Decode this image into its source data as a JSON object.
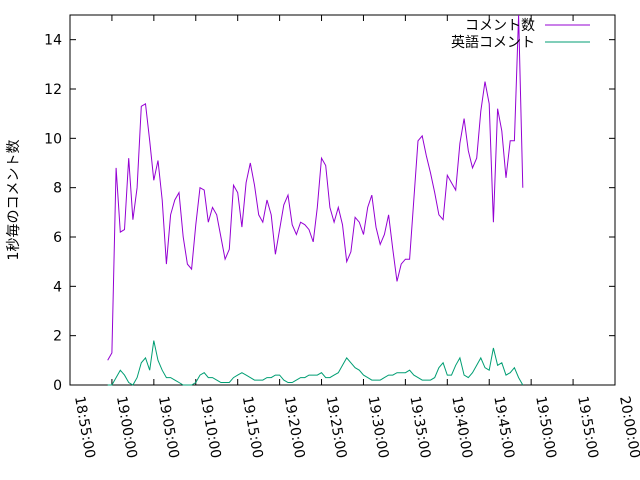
{
  "chart_data": {
    "type": "line",
    "title": "",
    "xlabel": "",
    "ylabel": "1秒毎のコメント数",
    "xlim": [
      "18:55:00",
      "20:00:00"
    ],
    "ylim": [
      0,
      15
    ],
    "grid": false,
    "legend_position": "top-right",
    "xticks": [
      "18:55:00",
      "19:00:00",
      "19:05:00",
      "19:10:00",
      "19:15:00",
      "19:20:00",
      "19:25:00",
      "19:30:00",
      "19:35:00",
      "19:40:00",
      "19:45:00",
      "19:50:00",
      "19:55:00",
      "20:00:00"
    ],
    "yticks": [
      0,
      2,
      4,
      6,
      8,
      10,
      12,
      14
    ],
    "series": [
      {
        "name": "コメント数",
        "color": "#9400d3",
        "points": [
          [
            "18:59:30",
            1.0
          ],
          [
            "19:00:00",
            1.3
          ],
          [
            "19:00:30",
            8.8
          ],
          [
            "19:01:00",
            6.2
          ],
          [
            "19:01:30",
            6.3
          ],
          [
            "19:02:00",
            9.2
          ],
          [
            "19:02:30",
            6.7
          ],
          [
            "19:03:00",
            8.0
          ],
          [
            "19:03:30",
            11.3
          ],
          [
            "19:04:00",
            11.4
          ],
          [
            "19:04:30",
            9.9
          ],
          [
            "19:05:00",
            8.3
          ],
          [
            "19:05:30",
            9.1
          ],
          [
            "19:06:00",
            7.5
          ],
          [
            "19:06:30",
            4.9
          ],
          [
            "19:07:00",
            6.9
          ],
          [
            "19:07:30",
            7.5
          ],
          [
            "19:08:00",
            7.8
          ],
          [
            "19:08:30",
            6.0
          ],
          [
            "19:09:00",
            4.9
          ],
          [
            "19:09:30",
            4.7
          ],
          [
            "19:10:00",
            6.5
          ],
          [
            "19:10:30",
            8.0
          ],
          [
            "19:11:00",
            7.9
          ],
          [
            "19:11:30",
            6.6
          ],
          [
            "19:12:00",
            7.2
          ],
          [
            "19:12:30",
            6.9
          ],
          [
            "19:13:00",
            6.0
          ],
          [
            "19:13:30",
            5.1
          ],
          [
            "19:14:00",
            5.5
          ],
          [
            "19:14:30",
            8.1
          ],
          [
            "19:15:00",
            7.8
          ],
          [
            "19:15:30",
            6.4
          ],
          [
            "19:16:00",
            8.2
          ],
          [
            "19:16:30",
            9.0
          ],
          [
            "19:17:00",
            8.1
          ],
          [
            "19:17:30",
            6.9
          ],
          [
            "19:18:00",
            6.6
          ],
          [
            "19:18:30",
            7.5
          ],
          [
            "19:19:00",
            6.9
          ],
          [
            "19:19:30",
            5.3
          ],
          [
            "19:20:00",
            6.3
          ],
          [
            "19:20:30",
            7.3
          ],
          [
            "19:21:00",
            7.7
          ],
          [
            "19:21:30",
            6.5
          ],
          [
            "19:22:00",
            6.1
          ],
          [
            "19:22:30",
            6.6
          ],
          [
            "19:23:00",
            6.5
          ],
          [
            "19:23:30",
            6.3
          ],
          [
            "19:24:00",
            5.8
          ],
          [
            "19:24:30",
            7.2
          ],
          [
            "19:25:00",
            9.2
          ],
          [
            "19:25:30",
            8.9
          ],
          [
            "19:26:00",
            7.2
          ],
          [
            "19:26:30",
            6.6
          ],
          [
            "19:27:00",
            7.2
          ],
          [
            "19:27:30",
            6.5
          ],
          [
            "19:28:00",
            5.0
          ],
          [
            "19:28:30",
            5.4
          ],
          [
            "19:29:00",
            6.8
          ],
          [
            "19:29:30",
            6.6
          ],
          [
            "19:30:00",
            6.1
          ],
          [
            "19:30:30",
            7.2
          ],
          [
            "19:31:00",
            7.7
          ],
          [
            "19:31:30",
            6.4
          ],
          [
            "19:32:00",
            5.7
          ],
          [
            "19:32:30",
            6.1
          ],
          [
            "19:33:00",
            6.9
          ],
          [
            "19:33:30",
            5.5
          ],
          [
            "19:34:00",
            4.2
          ],
          [
            "19:34:30",
            4.9
          ],
          [
            "19:35:00",
            5.1
          ],
          [
            "19:35:30",
            5.1
          ],
          [
            "19:36:00",
            7.5
          ],
          [
            "19:36:30",
            9.9
          ],
          [
            "19:37:00",
            10.1
          ],
          [
            "19:37:30",
            9.3
          ],
          [
            "19:38:00",
            8.6
          ],
          [
            "19:38:30",
            7.8
          ],
          [
            "19:39:00",
            6.9
          ],
          [
            "19:39:30",
            6.7
          ],
          [
            "19:40:00",
            8.5
          ],
          [
            "19:40:30",
            8.2
          ],
          [
            "19:41:00",
            7.9
          ],
          [
            "19:41:30",
            9.8
          ],
          [
            "19:42:00",
            10.8
          ],
          [
            "19:42:30",
            9.5
          ],
          [
            "19:43:00",
            8.8
          ],
          [
            "19:43:30",
            9.2
          ],
          [
            "19:44:00",
            11.1
          ],
          [
            "19:44:30",
            12.3
          ],
          [
            "19:45:00",
            11.4
          ],
          [
            "19:45:30",
            6.6
          ],
          [
            "19:46:00",
            11.2
          ],
          [
            "19:46:30",
            10.3
          ],
          [
            "19:47:00",
            8.4
          ],
          [
            "19:47:30",
            9.9
          ],
          [
            "19:48:00",
            9.9
          ],
          [
            "19:48:30",
            15.0
          ],
          [
            "19:49:00",
            8.0
          ]
        ]
      },
      {
        "name": "英語コメント",
        "color": "#009e73",
        "points": [
          [
            "18:59:30",
            0.0
          ],
          [
            "19:00:00",
            0.0
          ],
          [
            "19:00:30",
            0.3
          ],
          [
            "19:01:00",
            0.6
          ],
          [
            "19:01:30",
            0.4
          ],
          [
            "19:02:00",
            0.1
          ],
          [
            "19:02:30",
            0.0
          ],
          [
            "19:03:00",
            0.3
          ],
          [
            "19:03:30",
            0.9
          ],
          [
            "19:04:00",
            1.1
          ],
          [
            "19:04:30",
            0.6
          ],
          [
            "19:05:00",
            1.8
          ],
          [
            "19:05:30",
            1.0
          ],
          [
            "19:06:00",
            0.6
          ],
          [
            "19:06:30",
            0.3
          ],
          [
            "19:07:00",
            0.3
          ],
          [
            "19:07:30",
            0.2
          ],
          [
            "19:08:00",
            0.1
          ],
          [
            "19:08:30",
            0.0
          ],
          [
            "19:09:00",
            0.0
          ],
          [
            "19:09:30",
            0.0
          ],
          [
            "19:10:00",
            0.1
          ],
          [
            "19:10:30",
            0.4
          ],
          [
            "19:11:00",
            0.5
          ],
          [
            "19:11:30",
            0.3
          ],
          [
            "19:12:00",
            0.3
          ],
          [
            "19:12:30",
            0.2
          ],
          [
            "19:13:00",
            0.1
          ],
          [
            "19:13:30",
            0.1
          ],
          [
            "19:14:00",
            0.1
          ],
          [
            "19:14:30",
            0.3
          ],
          [
            "19:15:00",
            0.4
          ],
          [
            "19:15:30",
            0.5
          ],
          [
            "19:16:00",
            0.4
          ],
          [
            "19:16:30",
            0.3
          ],
          [
            "19:17:00",
            0.2
          ],
          [
            "19:17:30",
            0.2
          ],
          [
            "19:18:00",
            0.2
          ],
          [
            "19:18:30",
            0.3
          ],
          [
            "19:19:00",
            0.3
          ],
          [
            "19:19:30",
            0.4
          ],
          [
            "19:20:00",
            0.4
          ],
          [
            "19:20:30",
            0.2
          ],
          [
            "19:21:00",
            0.1
          ],
          [
            "19:21:30",
            0.1
          ],
          [
            "19:22:00",
            0.2
          ],
          [
            "19:22:30",
            0.3
          ],
          [
            "19:23:00",
            0.3
          ],
          [
            "19:23:30",
            0.4
          ],
          [
            "19:24:00",
            0.4
          ],
          [
            "19:24:30",
            0.4
          ],
          [
            "19:25:00",
            0.5
          ],
          [
            "19:25:30",
            0.3
          ],
          [
            "19:26:00",
            0.3
          ],
          [
            "19:26:30",
            0.4
          ],
          [
            "19:27:00",
            0.5
          ],
          [
            "19:27:30",
            0.8
          ],
          [
            "19:28:00",
            1.1
          ],
          [
            "19:28:30",
            0.9
          ],
          [
            "19:29:00",
            0.7
          ],
          [
            "19:29:30",
            0.6
          ],
          [
            "19:30:00",
            0.4
          ],
          [
            "19:30:30",
            0.3
          ],
          [
            "19:31:00",
            0.2
          ],
          [
            "19:31:30",
            0.2
          ],
          [
            "19:32:00",
            0.2
          ],
          [
            "19:32:30",
            0.3
          ],
          [
            "19:33:00",
            0.4
          ],
          [
            "19:33:30",
            0.4
          ],
          [
            "19:34:00",
            0.5
          ],
          [
            "19:34:30",
            0.5
          ],
          [
            "19:35:00",
            0.5
          ],
          [
            "19:35:30",
            0.6
          ],
          [
            "19:36:00",
            0.4
          ],
          [
            "19:36:30",
            0.3
          ],
          [
            "19:37:00",
            0.2
          ],
          [
            "19:37:30",
            0.2
          ],
          [
            "19:38:00",
            0.2
          ],
          [
            "19:38:30",
            0.3
          ],
          [
            "19:39:00",
            0.7
          ],
          [
            "19:39:30",
            0.9
          ],
          [
            "19:40:00",
            0.4
          ],
          [
            "19:40:30",
            0.4
          ],
          [
            "19:41:00",
            0.8
          ],
          [
            "19:41:30",
            1.1
          ],
          [
            "19:42:00",
            0.4
          ],
          [
            "19:42:30",
            0.3
          ],
          [
            "19:43:00",
            0.5
          ],
          [
            "19:43:30",
            0.8
          ],
          [
            "19:44:00",
            1.1
          ],
          [
            "19:44:30",
            0.7
          ],
          [
            "19:45:00",
            0.6
          ],
          [
            "19:45:30",
            1.5
          ],
          [
            "19:46:00",
            0.8
          ],
          [
            "19:46:30",
            0.9
          ],
          [
            "19:47:00",
            0.4
          ],
          [
            "19:47:30",
            0.5
          ],
          [
            "19:48:00",
            0.7
          ],
          [
            "19:48:30",
            0.3
          ],
          [
            "19:49:00",
            0.0
          ]
        ]
      }
    ]
  }
}
